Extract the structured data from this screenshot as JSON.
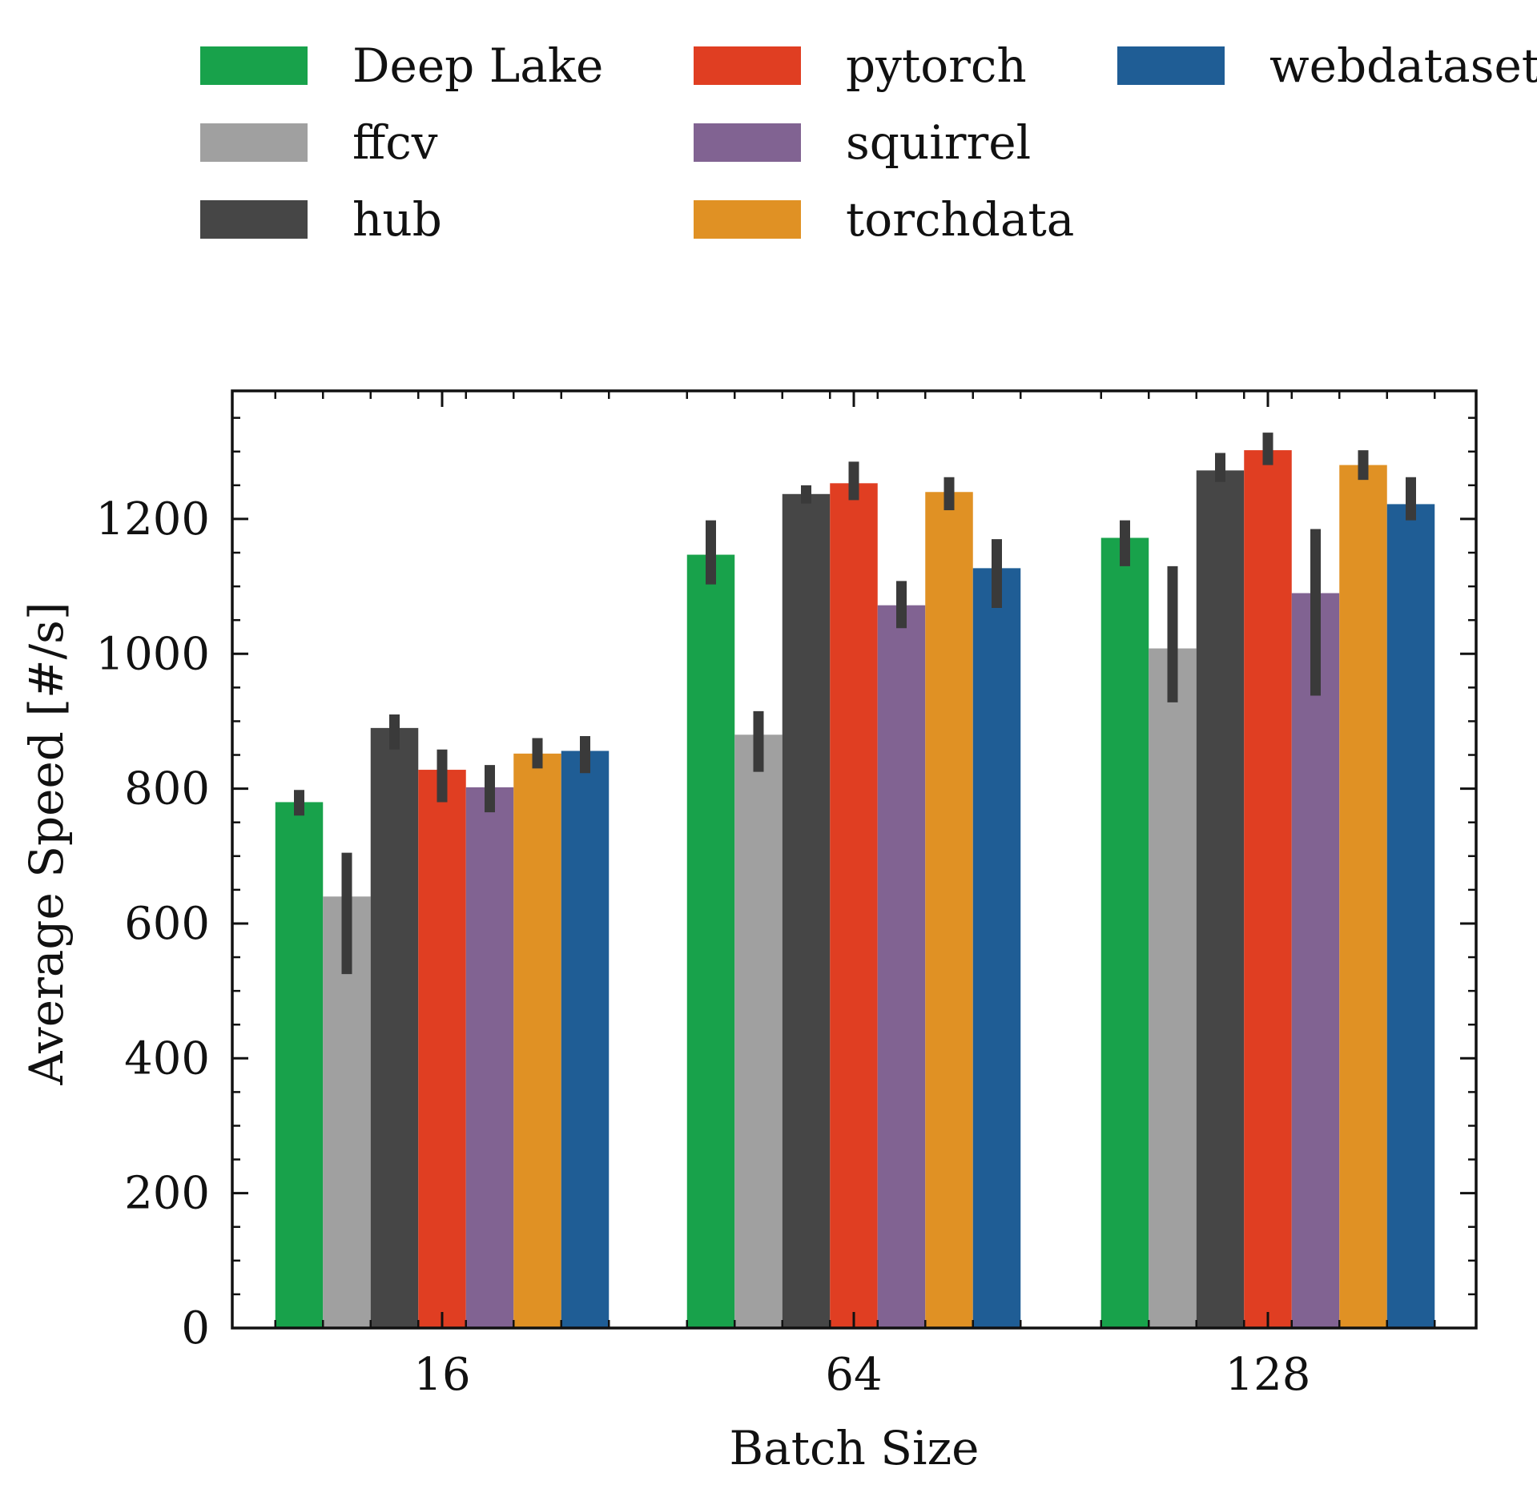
{
  "chart_data": {
    "type": "bar",
    "title": "",
    "xlabel": "Batch Size",
    "ylabel": "Average Speed [#/s]",
    "categories": [
      "16",
      "64",
      "128"
    ],
    "ylim": [
      0,
      1390
    ],
    "yticks": [
      0,
      200,
      400,
      600,
      800,
      1000,
      1200
    ],
    "grid": false,
    "legend": "top",
    "series": [
      {
        "name": "Deep Lake",
        "color": "#18a24b",
        "values": [
          780,
          1147,
          1172
        ],
        "err_low": [
          760,
          1103,
          1130
        ],
        "err_high": [
          798,
          1198,
          1198
        ]
      },
      {
        "name": "ffcv",
        "color": "#a0a0a0",
        "values": [
          640,
          880,
          1008
        ],
        "err_low": [
          525,
          825,
          928
        ],
        "err_high": [
          705,
          915,
          1130
        ]
      },
      {
        "name": "hub",
        "color": "#464646",
        "values": [
          890,
          1237,
          1272
        ],
        "err_low": [
          858,
          1223,
          1255
        ],
        "err_high": [
          910,
          1250,
          1298
        ]
      },
      {
        "name": "pytorch",
        "color": "#e03e22",
        "values": [
          828,
          1253,
          1302
        ],
        "err_low": [
          780,
          1228,
          1280
        ],
        "err_high": [
          858,
          1285,
          1328
        ]
      },
      {
        "name": "squirrel",
        "color": "#816392",
        "values": [
          802,
          1072,
          1090
        ],
        "err_low": [
          765,
          1038,
          938
        ],
        "err_high": [
          835,
          1108,
          1185
        ]
      },
      {
        "name": "torchdata",
        "color": "#e09124",
        "values": [
          852,
          1240,
          1280
        ],
        "err_low": [
          830,
          1213,
          1258
        ],
        "err_high": [
          875,
          1262,
          1302
        ]
      },
      {
        "name": "webdataset",
        "color": "#1f5d95",
        "values": [
          856,
          1127,
          1222
        ],
        "err_low": [
          823,
          1068,
          1198
        ],
        "err_high": [
          878,
          1170,
          1262
        ]
      }
    ]
  }
}
